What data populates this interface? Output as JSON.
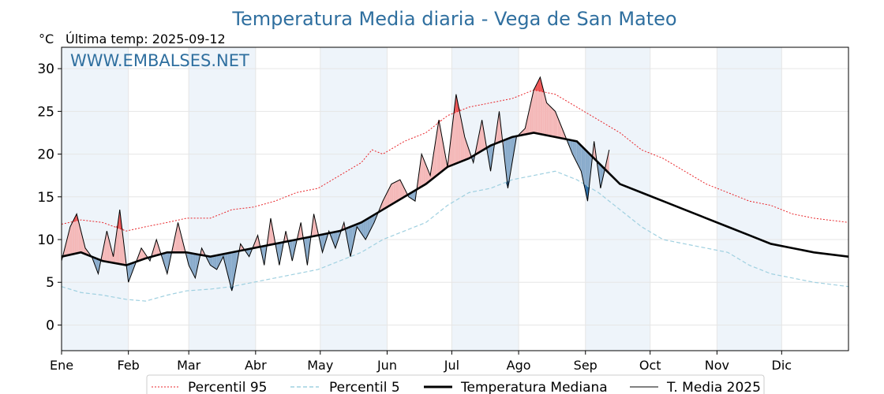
{
  "chart_data": {
    "type": "line",
    "title": "Temperatura Media diaria - Vega de San Mateo",
    "unit_label": "°C",
    "last_temp_label": "Última temp: 2025-09-12",
    "watermark": "WWW.EMBALSES.NET",
    "ylim": [
      -3,
      32.5
    ],
    "yticks": [
      0,
      5,
      10,
      15,
      20,
      25,
      30
    ],
    "xlim": [
      1,
      366
    ],
    "months": [
      "Ene",
      "Feb",
      "Mar",
      "Abr",
      "May",
      "Jun",
      "Jul",
      "Ago",
      "Sep",
      "Oct",
      "Nov",
      "Dic"
    ],
    "month_start_days": [
      1,
      32,
      60,
      91,
      121,
      152,
      182,
      213,
      244,
      274,
      305,
      335
    ],
    "grid": true,
    "legend_position": "bottom",
    "colors": {
      "p95": "#e8262b",
      "p5": "#9fd0e0",
      "median": "#000000",
      "year": "#000000",
      "above_fill": "#f4b8b8",
      "above_extreme_fill": "#ee5555",
      "below_fill": "#8aaccc",
      "below_extreme_fill": "#2f6fa7",
      "band": "#eef4fa",
      "title": "#2f6f9f"
    },
    "series": [
      {
        "name": "Percentil 95",
        "x": [
          1,
          10,
          20,
          31,
          40,
          50,
          59,
          70,
          80,
          90,
          100,
          110,
          120,
          130,
          140,
          145,
          150,
          160,
          170,
          180,
          190,
          200,
          210,
          220,
          230,
          240,
          250,
          260,
          270,
          280,
          290,
          300,
          310,
          320,
          330,
          340,
          350,
          366
        ],
        "y": [
          11.8,
          12.3,
          12.0,
          11.0,
          11.5,
          12.0,
          12.5,
          12.5,
          13.5,
          13.8,
          14.5,
          15.5,
          16.0,
          17.5,
          19.0,
          20.5,
          20.0,
          21.5,
          22.5,
          24.5,
          25.5,
          26.0,
          26.5,
          27.5,
          27.0,
          25.5,
          24.0,
          22.5,
          20.5,
          19.5,
          18.0,
          16.5,
          15.5,
          14.5,
          14.0,
          13.0,
          12.5,
          12.0
        ]
      },
      {
        "name": "Percentil 5",
        "x": [
          1,
          10,
          20,
          31,
          40,
          50,
          59,
          70,
          80,
          90,
          100,
          110,
          120,
          130,
          140,
          150,
          160,
          170,
          180,
          190,
          200,
          210,
          220,
          230,
          240,
          250,
          260,
          270,
          280,
          290,
          300,
          310,
          320,
          330,
          340,
          350,
          366
        ],
        "y": [
          4.5,
          3.8,
          3.5,
          3.0,
          2.8,
          3.5,
          4.0,
          4.2,
          4.5,
          5.0,
          5.5,
          6.0,
          6.5,
          7.5,
          8.5,
          10.0,
          11.0,
          12.0,
          14.0,
          15.5,
          16.0,
          17.0,
          17.5,
          18.0,
          17.0,
          15.5,
          13.5,
          11.5,
          10.0,
          9.5,
          9.0,
          8.5,
          7.0,
          6.0,
          5.5,
          5.0,
          4.5
        ]
      },
      {
        "name": "Temperatura Mediana",
        "x": [
          1,
          10,
          20,
          31,
          40,
          50,
          59,
          70,
          80,
          90,
          100,
          110,
          120,
          130,
          140,
          150,
          160,
          170,
          180,
          190,
          200,
          210,
          220,
          230,
          240,
          250,
          260,
          270,
          280,
          290,
          300,
          310,
          320,
          330,
          340,
          350,
          366
        ],
        "y": [
          8.0,
          8.5,
          7.5,
          7.0,
          7.8,
          8.5,
          8.5,
          8.0,
          8.5,
          9.0,
          9.5,
          10.0,
          10.5,
          11.0,
          12.0,
          13.5,
          15.0,
          16.5,
          18.5,
          19.5,
          21.0,
          22.0,
          22.5,
          22.0,
          21.5,
          19.0,
          16.5,
          15.5,
          14.5,
          13.5,
          12.5,
          11.5,
          10.5,
          9.5,
          9.0,
          8.5,
          8.0
        ]
      },
      {
        "name": "T. Media 2025",
        "x": [
          1,
          5,
          8,
          12,
          15,
          18,
          22,
          25,
          28,
          32,
          35,
          38,
          42,
          45,
          50,
          55,
          60,
          63,
          66,
          70,
          73,
          76,
          80,
          84,
          88,
          92,
          95,
          98,
          102,
          105,
          108,
          112,
          115,
          118,
          122,
          125,
          128,
          132,
          135,
          138,
          142,
          146,
          150,
          154,
          158,
          162,
          165,
          168,
          172,
          176,
          180,
          184,
          188,
          192,
          196,
          200,
          204,
          208,
          212,
          216,
          220,
          223,
          226,
          230,
          234,
          238,
          242,
          245,
          248,
          251,
          255
        ],
        "y": [
          7.5,
          11.5,
          13.0,
          9.0,
          8.0,
          6.0,
          11.0,
          8.0,
          13.5,
          5.0,
          7.0,
          9.0,
          7.5,
          10.0,
          6.0,
          12.0,
          7.0,
          5.5,
          9.0,
          7.0,
          6.5,
          8.0,
          4.0,
          9.5,
          8.0,
          10.5,
          7.0,
          12.5,
          7.0,
          11.0,
          7.5,
          12.0,
          7.0,
          13.0,
          8.5,
          11.0,
          9.0,
          12.0,
          8.0,
          11.5,
          10.0,
          12.0,
          14.5,
          16.5,
          17.0,
          15.0,
          14.5,
          20.0,
          17.5,
          24.0,
          18.5,
          27.0,
          22.0,
          19.0,
          24.0,
          18.0,
          25.0,
          16.0,
          22.0,
          23.0,
          27.5,
          29.0,
          26.0,
          25.0,
          22.5,
          20.0,
          18.0,
          14.5,
          21.5,
          16.0,
          20.5
        ]
      }
    ]
  },
  "legend": {
    "p95": "Percentil 95",
    "p5": "Percentil 5",
    "median": "Temperatura Mediana",
    "year": "T. Media 2025"
  }
}
